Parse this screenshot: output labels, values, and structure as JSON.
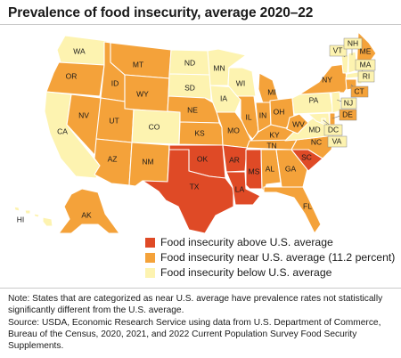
{
  "title": "Prevalence of food insecurity, average 2020–22",
  "colors": {
    "above": "#df4a26",
    "near": "#f4a23a",
    "below": "#fdf3b0",
    "border": "#ffffff"
  },
  "legend": [
    {
      "key": "above",
      "label": "Food insecurity above U.S. average"
    },
    {
      "key": "near",
      "label": "Food insecurity near U.S. average (11.2 percent)"
    },
    {
      "key": "below",
      "label": "Food insecurity below U.S. average"
    }
  ],
  "states": {
    "WA": "below",
    "OR": "near",
    "CA": "below",
    "NV": "near",
    "ID": "near",
    "MT": "near",
    "WY": "near",
    "UT": "near",
    "AZ": "near",
    "CO": "below",
    "NM": "near",
    "ND": "below",
    "SD": "below",
    "NE": "near",
    "KS": "near",
    "OK": "above",
    "TX": "above",
    "MN": "below",
    "IA": "below",
    "MO": "near",
    "AR": "above",
    "LA": "above",
    "WI": "below",
    "IL": "near",
    "MI": "near",
    "IN": "near",
    "OH": "near",
    "KY": "near",
    "TN": "near",
    "MS": "above",
    "AL": "near",
    "GA": "near",
    "FL": "near",
    "SC": "above",
    "NC": "near",
    "VA": "below",
    "WV": "near",
    "PA": "below",
    "NY": "near",
    "ME": "near",
    "VT": "below",
    "NH": "below",
    "MA": "below",
    "RI": "below",
    "CT": "near",
    "NJ": "below",
    "DE": "near",
    "MD": "below",
    "DC": "below",
    "AK": "near",
    "HI": "below"
  },
  "note": "Note: States that are categorized as near U.S. average have prevalence rates not statistically significantly different from the U.S. average.",
  "source": "Source: USDA, Economic Research Service using data from U.S. Department of Commerce, Bureau of the Census, 2020, 2021, and 2022 Current Population Survey Food Security Supplements."
}
